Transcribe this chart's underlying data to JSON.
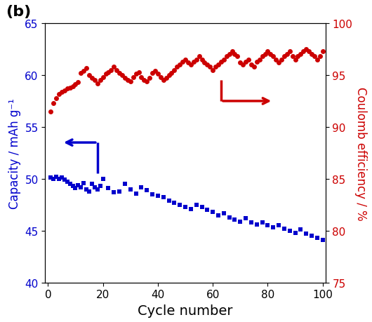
{
  "title": "(b)",
  "xlabel": "Cycle number",
  "ylabel_left": "Capacity / mAh g⁻¹",
  "ylabel_right": "Coulomb efficiency / %",
  "xlim": [
    -1,
    101
  ],
  "ylim_left": [
    40,
    65
  ],
  "ylim_right": [
    75,
    100
  ],
  "yticks_left": [
    40,
    45,
    50,
    55,
    60,
    65
  ],
  "yticks_right": [
    75,
    80,
    85,
    90,
    95,
    100
  ],
  "xticks": [
    0,
    20,
    40,
    60,
    80,
    100
  ],
  "color_capacity": "#0000cc",
  "color_coulomb": "#cc0000",
  "capacity_x": [
    1,
    2,
    3,
    4,
    5,
    6,
    7,
    8,
    9,
    10,
    11,
    12,
    13,
    14,
    15,
    16,
    17,
    18,
    19,
    20,
    22,
    24,
    26,
    28,
    30,
    32,
    34,
    36,
    38,
    40,
    42,
    44,
    46,
    48,
    50,
    52,
    54,
    56,
    58,
    60,
    62,
    64,
    66,
    68,
    70,
    72,
    74,
    76,
    78,
    80,
    82,
    84,
    86,
    88,
    90,
    92,
    94,
    96,
    98,
    100
  ],
  "capacity_y": [
    50.1,
    50.0,
    50.2,
    50.0,
    50.1,
    49.9,
    49.7,
    49.5,
    49.3,
    49.1,
    49.4,
    49.2,
    49.6,
    49.0,
    48.8,
    49.5,
    49.2,
    49.0,
    49.3,
    50.0,
    49.1,
    48.7,
    48.8,
    49.5,
    49.0,
    48.6,
    49.2,
    48.9,
    48.5,
    48.4,
    48.2,
    47.9,
    47.7,
    47.5,
    47.3,
    47.1,
    47.5,
    47.3,
    47.0,
    46.8,
    46.5,
    46.7,
    46.3,
    46.1,
    45.9,
    46.2,
    45.8,
    45.6,
    45.8,
    45.5,
    45.3,
    45.5,
    45.2,
    45.0,
    44.8,
    45.1,
    44.7,
    44.5,
    44.3,
    44.1
  ],
  "coulomb_x": [
    1,
    2,
    3,
    4,
    5,
    6,
    7,
    8,
    9,
    10,
    11,
    12,
    13,
    14,
    15,
    16,
    17,
    18,
    19,
    20,
    21,
    22,
    23,
    24,
    25,
    26,
    27,
    28,
    29,
    30,
    31,
    32,
    33,
    34,
    35,
    36,
    37,
    38,
    39,
    40,
    41,
    42,
    43,
    44,
    45,
    46,
    47,
    48,
    49,
    50,
    51,
    52,
    53,
    54,
    55,
    56,
    57,
    58,
    59,
    60,
    61,
    62,
    63,
    64,
    65,
    66,
    67,
    68,
    69,
    70,
    71,
    72,
    73,
    74,
    75,
    76,
    77,
    78,
    79,
    80,
    81,
    82,
    83,
    84,
    85,
    86,
    87,
    88,
    89,
    90,
    91,
    92,
    93,
    94,
    95,
    96,
    97,
    98,
    99,
    100
  ],
  "coulomb_y": [
    91.5,
    92.3,
    92.8,
    93.2,
    93.4,
    93.5,
    93.7,
    93.8,
    93.9,
    94.1,
    94.3,
    95.2,
    95.4,
    95.7,
    95.0,
    94.7,
    94.5,
    94.2,
    94.5,
    94.8,
    95.1,
    95.3,
    95.5,
    95.8,
    95.5,
    95.2,
    95.0,
    94.7,
    94.5,
    94.4,
    94.8,
    95.1,
    95.3,
    94.8,
    94.5,
    94.4,
    94.7,
    95.2,
    95.4,
    95.1,
    94.8,
    94.5,
    94.7,
    95.0,
    95.2,
    95.5,
    95.8,
    96.0,
    96.3,
    96.5,
    96.2,
    96.0,
    96.3,
    96.5,
    96.8,
    96.5,
    96.2,
    96.0,
    95.8,
    95.5,
    95.8,
    96.0,
    96.3,
    96.5,
    96.8,
    97.0,
    97.3,
    97.0,
    96.8,
    96.2,
    96.0,
    96.3,
    96.5,
    96.0,
    95.8,
    96.3,
    96.5,
    96.8,
    97.0,
    97.3,
    97.0,
    96.8,
    96.5,
    96.2,
    96.5,
    96.8,
    97.0,
    97.3,
    96.8,
    96.5,
    96.8,
    97.0,
    97.3,
    97.5,
    97.3,
    97.0,
    96.8,
    96.5,
    96.8,
    97.3
  ],
  "background_color": "#ffffff"
}
